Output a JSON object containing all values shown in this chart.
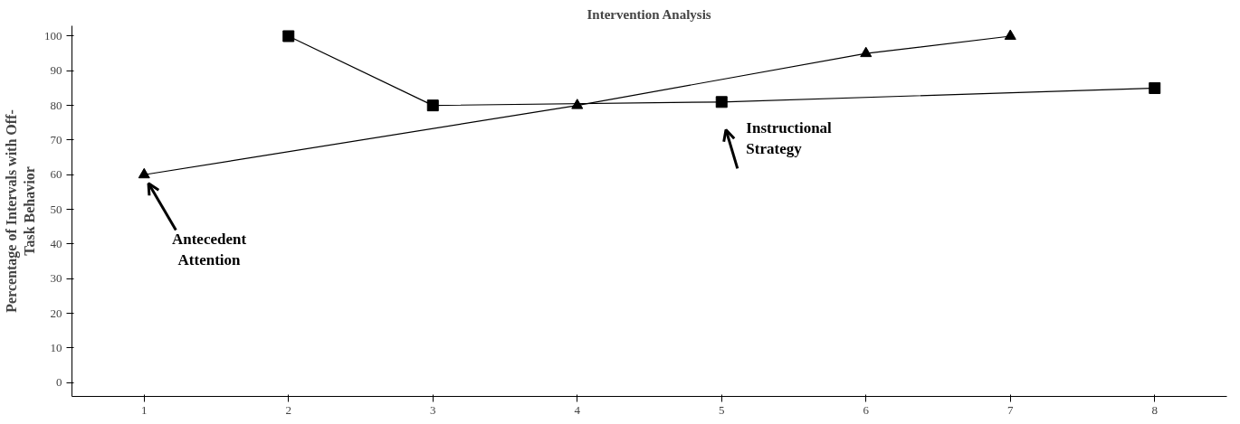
{
  "chart_data": {
    "type": "line",
    "title": "Intervention Analysis",
    "ylabel": "Percentage of Intervals with Off-\nTask Behavior",
    "xlim": [
      0.5,
      8.5
    ],
    "xticks": [
      1,
      2,
      3,
      4,
      5,
      6,
      7,
      8
    ],
    "ylim": [
      -4,
      103
    ],
    "yticks": [
      0,
      10,
      20,
      30,
      40,
      50,
      60,
      70,
      80,
      90,
      100
    ],
    "grid": false,
    "series": [
      {
        "name": "Antecedent Attention",
        "color": "#000000",
        "marker": "triangle",
        "x": [
          1,
          4,
          6,
          7
        ],
        "values": [
          60,
          80,
          95,
          100
        ]
      },
      {
        "name": "Instructional Strategy",
        "color": "#000000",
        "marker": "square",
        "x": [
          2,
          3,
          5,
          8
        ],
        "values": [
          100,
          80,
          81,
          85
        ]
      }
    ]
  }
}
